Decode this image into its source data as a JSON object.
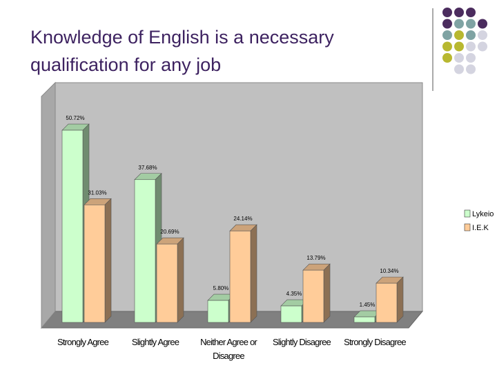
{
  "chart_data": {
    "type": "bar",
    "title": "Knowledge of English is a necessary qualification for any job",
    "categories": [
      "Strongly Agree",
      "Slightly Agree",
      "Neither Agree or Disagree",
      "Slightly Disagree",
      "Strongly Disagree"
    ],
    "series": [
      {
        "name": "Lykeio",
        "color": "#ccffcc",
        "values": [
          50.72,
          37.68,
          5.8,
          4.35,
          1.45
        ],
        "value_labels": [
          "50.72%",
          "37.68%",
          "5.80%",
          "4.35%",
          "1.45%"
        ]
      },
      {
        "name": "I.E.K",
        "color": "#ffcc99",
        "values": [
          31.03,
          20.69,
          24.14,
          13.79,
          10.34
        ],
        "value_labels": [
          "31.03%",
          "20.69%",
          "24.14%",
          "13.79%",
          "10.34%"
        ]
      }
    ],
    "legend": "right"
  }
}
